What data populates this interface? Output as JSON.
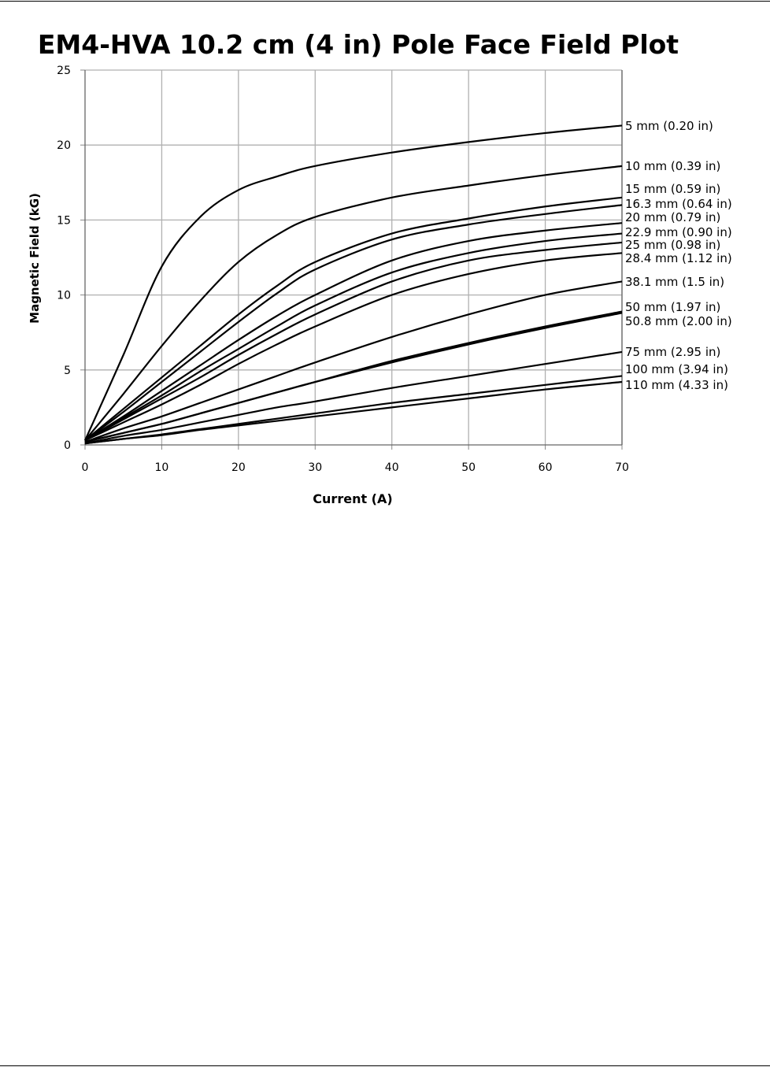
{
  "chart_data": {
    "type": "line",
    "title": "EM4-HVA 10.2 cm (4 in) Pole Face Field Plot",
    "xlabel": "Current (A)",
    "ylabel": "Magnetic Field (kG)",
    "xlim": [
      0,
      70
    ],
    "ylim": [
      0,
      25
    ],
    "xticks": [
      "0",
      "10",
      "20",
      "30",
      "40",
      "50",
      "60",
      "70"
    ],
    "yticks": [
      "0",
      "5",
      "10",
      "15",
      "20",
      "25"
    ],
    "grid": true,
    "legend": "right-end labels",
    "x": [
      0,
      5,
      10,
      15,
      20,
      25,
      30,
      40,
      50,
      60,
      70
    ],
    "series": [
      {
        "name": "5 mm (0.20 in)",
        "values": [
          0.3,
          6.0,
          11.9,
          15.2,
          17.0,
          17.9,
          18.6,
          19.5,
          20.2,
          20.8,
          21.3
        ]
      },
      {
        "name": "10 mm (0.39 in)",
        "values": [
          0.3,
          3.4,
          6.6,
          9.6,
          12.2,
          14.0,
          15.2,
          16.5,
          17.3,
          18.0,
          18.6
        ]
      },
      {
        "name": "15 mm (0.59 in)",
        "values": [
          0.3,
          2.4,
          4.5,
          6.6,
          8.7,
          10.6,
          12.2,
          14.1,
          15.1,
          15.9,
          16.5
        ]
      },
      {
        "name": "16.3 mm (0.64 in)",
        "values": [
          0.3,
          2.2,
          4.2,
          6.2,
          8.2,
          10.1,
          11.7,
          13.7,
          14.7,
          15.4,
          16.0
        ]
      },
      {
        "name": "20 mm (0.79 in)",
        "values": [
          0.3,
          1.9,
          3.6,
          5.3,
          7.0,
          8.6,
          10.0,
          12.3,
          13.6,
          14.3,
          14.8
        ]
      },
      {
        "name": "22.9 mm (0.90 in)",
        "values": [
          0.3,
          1.8,
          3.3,
          4.9,
          6.4,
          7.9,
          9.3,
          11.5,
          12.8,
          13.6,
          14.1
        ]
      },
      {
        "name": "25 mm (0.98 in)",
        "values": [
          0.3,
          1.7,
          3.1,
          4.5,
          6.0,
          7.4,
          8.7,
          10.9,
          12.3,
          13.0,
          13.5
        ]
      },
      {
        "name": "28.4 mm (1.12 in)",
        "values": [
          0.3,
          1.5,
          2.7,
          4.0,
          5.4,
          6.7,
          7.9,
          10.0,
          11.4,
          12.3,
          12.8
        ]
      },
      {
        "name": "38.1 mm (1.5 in)",
        "values": [
          0.2,
          1.1,
          1.9,
          2.8,
          3.7,
          4.6,
          5.5,
          7.2,
          8.7,
          10.0,
          10.9
        ]
      },
      {
        "name": "50 mm (1.97 in)",
        "values": [
          0.2,
          0.8,
          1.4,
          2.1,
          2.8,
          3.5,
          4.2,
          5.6,
          6.8,
          7.9,
          8.9
        ]
      },
      {
        "name": "50.8 mm (2.00 in)",
        "values": [
          0.2,
          0.8,
          1.4,
          2.1,
          2.8,
          3.5,
          4.2,
          5.5,
          6.7,
          7.8,
          8.8
        ]
      },
      {
        "name": "75 mm (2.95 in)",
        "values": [
          0.1,
          0.6,
          1.0,
          1.5,
          2.0,
          2.5,
          2.9,
          3.8,
          4.6,
          5.4,
          6.2
        ]
      },
      {
        "name": "100 mm (3.94 in)",
        "values": [
          0.1,
          0.4,
          0.7,
          1.05,
          1.4,
          1.75,
          2.1,
          2.8,
          3.4,
          4.0,
          4.6
        ]
      },
      {
        "name": "110 mm (4.33 in)",
        "values": [
          0.1,
          0.4,
          0.65,
          1.0,
          1.3,
          1.6,
          1.9,
          2.5,
          3.1,
          3.7,
          4.2
        ]
      }
    ]
  }
}
